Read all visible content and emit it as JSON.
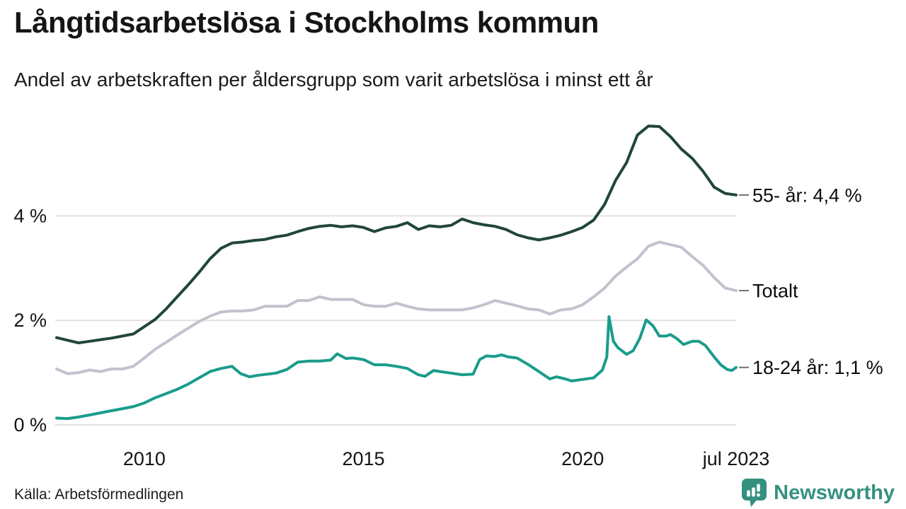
{
  "header": {
    "title": "Långtidsarbetslösa i Stockholms kommun",
    "subtitle": "Andel av arbetskraften per åldersgrupp som varit arbetslösa i minst ett år"
  },
  "footer": {
    "source": "Källa: Arbetsförmedlingen",
    "brand": "Newsworthy",
    "brand_icon": "pin-barchart-icon"
  },
  "colors": {
    "series_55": "#21463a",
    "series_totalt": "#c4c1ce",
    "series_18_24": "#1a9c8b",
    "gridline": "#e0e0e0",
    "axis_text": "#141414",
    "label_dash": "#6e6e6e",
    "brand": "#35917f"
  },
  "chart_data": {
    "type": "line",
    "title": "Långtidsarbetslösa i Stockholms kommun",
    "subtitle": "Andel av arbetskraften per åldersgrupp som varit arbetslösa i minst ett år",
    "unit": "% av arbetskraften",
    "grid": "horizontal",
    "legend_position": "right-end-labels",
    "x_axis": {
      "min": 2008.0,
      "max": 2023.5,
      "ticks": [
        {
          "value": 2010,
          "label": "2010"
        },
        {
          "value": 2015,
          "label": "2015"
        },
        {
          "value": 2020,
          "label": "2020"
        },
        {
          "value": 2023.5,
          "label": "jul 2023"
        }
      ]
    },
    "y_axis": {
      "min": 0,
      "max": 5.9,
      "ticks": [
        {
          "value": 0,
          "label": "0 %"
        },
        {
          "value": 2,
          "label": "2 %"
        },
        {
          "value": 4,
          "label": "4 %"
        }
      ]
    },
    "series": [
      {
        "name": "55- år",
        "label": "55- år: 4,4 %",
        "end_value": 4.4,
        "color": "#21463a",
        "points": [
          [
            2008.0,
            1.67
          ],
          [
            2008.25,
            1.62
          ],
          [
            2008.5,
            1.57
          ],
          [
            2008.75,
            1.6
          ],
          [
            2009.0,
            1.63
          ],
          [
            2009.25,
            1.66
          ],
          [
            2009.5,
            1.7
          ],
          [
            2009.75,
            1.74
          ],
          [
            2010.0,
            1.88
          ],
          [
            2010.25,
            2.02
          ],
          [
            2010.5,
            2.22
          ],
          [
            2010.75,
            2.45
          ],
          [
            2011.0,
            2.68
          ],
          [
            2011.25,
            2.92
          ],
          [
            2011.5,
            3.18
          ],
          [
            2011.75,
            3.38
          ],
          [
            2012.0,
            3.48
          ],
          [
            2012.25,
            3.5
          ],
          [
            2012.5,
            3.53
          ],
          [
            2012.75,
            3.55
          ],
          [
            2013.0,
            3.6
          ],
          [
            2013.25,
            3.63
          ],
          [
            2013.5,
            3.7
          ],
          [
            2013.75,
            3.76
          ],
          [
            2014.0,
            3.8
          ],
          [
            2014.25,
            3.82
          ],
          [
            2014.5,
            3.79
          ],
          [
            2014.75,
            3.81
          ],
          [
            2015.0,
            3.78
          ],
          [
            2015.25,
            3.7
          ],
          [
            2015.5,
            3.77
          ],
          [
            2015.75,
            3.8
          ],
          [
            2016.0,
            3.87
          ],
          [
            2016.25,
            3.74
          ],
          [
            2016.5,
            3.81
          ],
          [
            2016.75,
            3.79
          ],
          [
            2017.0,
            3.82
          ],
          [
            2017.25,
            3.94
          ],
          [
            2017.5,
            3.87
          ],
          [
            2017.75,
            3.83
          ],
          [
            2018.0,
            3.8
          ],
          [
            2018.25,
            3.74
          ],
          [
            2018.5,
            3.64
          ],
          [
            2018.75,
            3.58
          ],
          [
            2019.0,
            3.54
          ],
          [
            2019.25,
            3.58
          ],
          [
            2019.5,
            3.63
          ],
          [
            2019.75,
            3.7
          ],
          [
            2020.0,
            3.78
          ],
          [
            2020.25,
            3.92
          ],
          [
            2020.5,
            4.22
          ],
          [
            2020.75,
            4.68
          ],
          [
            2021.0,
            5.02
          ],
          [
            2021.25,
            5.55
          ],
          [
            2021.5,
            5.72
          ],
          [
            2021.75,
            5.71
          ],
          [
            2022.0,
            5.52
          ],
          [
            2022.25,
            5.28
          ],
          [
            2022.5,
            5.1
          ],
          [
            2022.75,
            4.85
          ],
          [
            2023.0,
            4.55
          ],
          [
            2023.25,
            4.43
          ],
          [
            2023.5,
            4.4
          ]
        ]
      },
      {
        "name": "Totalt",
        "label": "Totalt",
        "end_value": 2.6,
        "color": "#c4c1ce",
        "points": [
          [
            2008.0,
            1.07
          ],
          [
            2008.25,
            0.98
          ],
          [
            2008.5,
            1.0
          ],
          [
            2008.75,
            1.05
          ],
          [
            2009.0,
            1.02
          ],
          [
            2009.25,
            1.07
          ],
          [
            2009.5,
            1.07
          ],
          [
            2009.75,
            1.12
          ],
          [
            2010.0,
            1.28
          ],
          [
            2010.25,
            1.45
          ],
          [
            2010.5,
            1.58
          ],
          [
            2010.75,
            1.72
          ],
          [
            2011.0,
            1.85
          ],
          [
            2011.25,
            1.98
          ],
          [
            2011.5,
            2.08
          ],
          [
            2011.75,
            2.16
          ],
          [
            2012.0,
            2.18
          ],
          [
            2012.25,
            2.18
          ],
          [
            2012.5,
            2.2
          ],
          [
            2012.75,
            2.27
          ],
          [
            2013.0,
            2.27
          ],
          [
            2013.25,
            2.27
          ],
          [
            2013.5,
            2.38
          ],
          [
            2013.75,
            2.38
          ],
          [
            2014.0,
            2.45
          ],
          [
            2014.25,
            2.4
          ],
          [
            2014.5,
            2.4
          ],
          [
            2014.75,
            2.4
          ],
          [
            2015.0,
            2.3
          ],
          [
            2015.25,
            2.27
          ],
          [
            2015.5,
            2.27
          ],
          [
            2015.75,
            2.33
          ],
          [
            2016.0,
            2.27
          ],
          [
            2016.25,
            2.22
          ],
          [
            2016.5,
            2.2
          ],
          [
            2016.75,
            2.2
          ],
          [
            2017.0,
            2.2
          ],
          [
            2017.25,
            2.2
          ],
          [
            2017.5,
            2.24
          ],
          [
            2017.75,
            2.3
          ],
          [
            2018.0,
            2.38
          ],
          [
            2018.25,
            2.33
          ],
          [
            2018.5,
            2.28
          ],
          [
            2018.75,
            2.22
          ],
          [
            2019.0,
            2.2
          ],
          [
            2019.25,
            2.12
          ],
          [
            2019.5,
            2.2
          ],
          [
            2019.75,
            2.22
          ],
          [
            2020.0,
            2.3
          ],
          [
            2020.25,
            2.45
          ],
          [
            2020.5,
            2.62
          ],
          [
            2020.75,
            2.85
          ],
          [
            2021.0,
            3.02
          ],
          [
            2021.25,
            3.18
          ],
          [
            2021.5,
            3.42
          ],
          [
            2021.75,
            3.5
          ],
          [
            2022.0,
            3.45
          ],
          [
            2022.25,
            3.4
          ],
          [
            2022.5,
            3.22
          ],
          [
            2022.75,
            3.05
          ],
          [
            2023.0,
            2.82
          ],
          [
            2023.25,
            2.62
          ],
          [
            2023.5,
            2.57
          ]
        ]
      },
      {
        "name": "18-24 år",
        "label": "18-24 år: 1,1 %",
        "end_value": 1.1,
        "color": "#1a9c8b",
        "points": [
          [
            2008.0,
            0.13
          ],
          [
            2008.25,
            0.12
          ],
          [
            2008.5,
            0.15
          ],
          [
            2008.75,
            0.19
          ],
          [
            2009.0,
            0.23
          ],
          [
            2009.25,
            0.27
          ],
          [
            2009.5,
            0.31
          ],
          [
            2009.75,
            0.35
          ],
          [
            2010.0,
            0.42
          ],
          [
            2010.25,
            0.52
          ],
          [
            2010.5,
            0.6
          ],
          [
            2010.75,
            0.68
          ],
          [
            2011.0,
            0.78
          ],
          [
            2011.25,
            0.9
          ],
          [
            2011.5,
            1.02
          ],
          [
            2011.75,
            1.08
          ],
          [
            2012.0,
            1.12
          ],
          [
            2012.2,
            0.98
          ],
          [
            2012.4,
            0.92
          ],
          [
            2012.6,
            0.95
          ],
          [
            2012.8,
            0.97
          ],
          [
            2013.0,
            0.99
          ],
          [
            2013.25,
            1.06
          ],
          [
            2013.5,
            1.2
          ],
          [
            2013.75,
            1.22
          ],
          [
            2014.0,
            1.22
          ],
          [
            2014.25,
            1.24
          ],
          [
            2014.4,
            1.36
          ],
          [
            2014.6,
            1.27
          ],
          [
            2014.75,
            1.28
          ],
          [
            2015.0,
            1.25
          ],
          [
            2015.25,
            1.15
          ],
          [
            2015.5,
            1.15
          ],
          [
            2015.75,
            1.12
          ],
          [
            2016.0,
            1.08
          ],
          [
            2016.25,
            0.96
          ],
          [
            2016.4,
            0.93
          ],
          [
            2016.6,
            1.04
          ],
          [
            2016.75,
            1.02
          ],
          [
            2017.0,
            0.99
          ],
          [
            2017.25,
            0.96
          ],
          [
            2017.5,
            0.97
          ],
          [
            2017.65,
            1.25
          ],
          [
            2017.8,
            1.32
          ],
          [
            2018.0,
            1.31
          ],
          [
            2018.15,
            1.34
          ],
          [
            2018.3,
            1.3
          ],
          [
            2018.5,
            1.28
          ],
          [
            2018.75,
            1.16
          ],
          [
            2019.0,
            1.02
          ],
          [
            2019.25,
            0.88
          ],
          [
            2019.4,
            0.92
          ],
          [
            2019.6,
            0.88
          ],
          [
            2019.75,
            0.84
          ],
          [
            2020.0,
            0.87
          ],
          [
            2020.25,
            0.9
          ],
          [
            2020.45,
            1.05
          ],
          [
            2020.55,
            1.3
          ],
          [
            2020.6,
            2.07
          ],
          [
            2020.7,
            1.6
          ],
          [
            2020.8,
            1.48
          ],
          [
            2021.0,
            1.35
          ],
          [
            2021.15,
            1.42
          ],
          [
            2021.3,
            1.65
          ],
          [
            2021.45,
            2.01
          ],
          [
            2021.6,
            1.9
          ],
          [
            2021.75,
            1.7
          ],
          [
            2021.9,
            1.7
          ],
          [
            2022.0,
            1.73
          ],
          [
            2022.15,
            1.65
          ],
          [
            2022.3,
            1.54
          ],
          [
            2022.5,
            1.6
          ],
          [
            2022.65,
            1.6
          ],
          [
            2022.8,
            1.52
          ],
          [
            2023.0,
            1.3
          ],
          [
            2023.15,
            1.15
          ],
          [
            2023.3,
            1.06
          ],
          [
            2023.4,
            1.04
          ],
          [
            2023.5,
            1.1
          ]
        ]
      }
    ]
  }
}
